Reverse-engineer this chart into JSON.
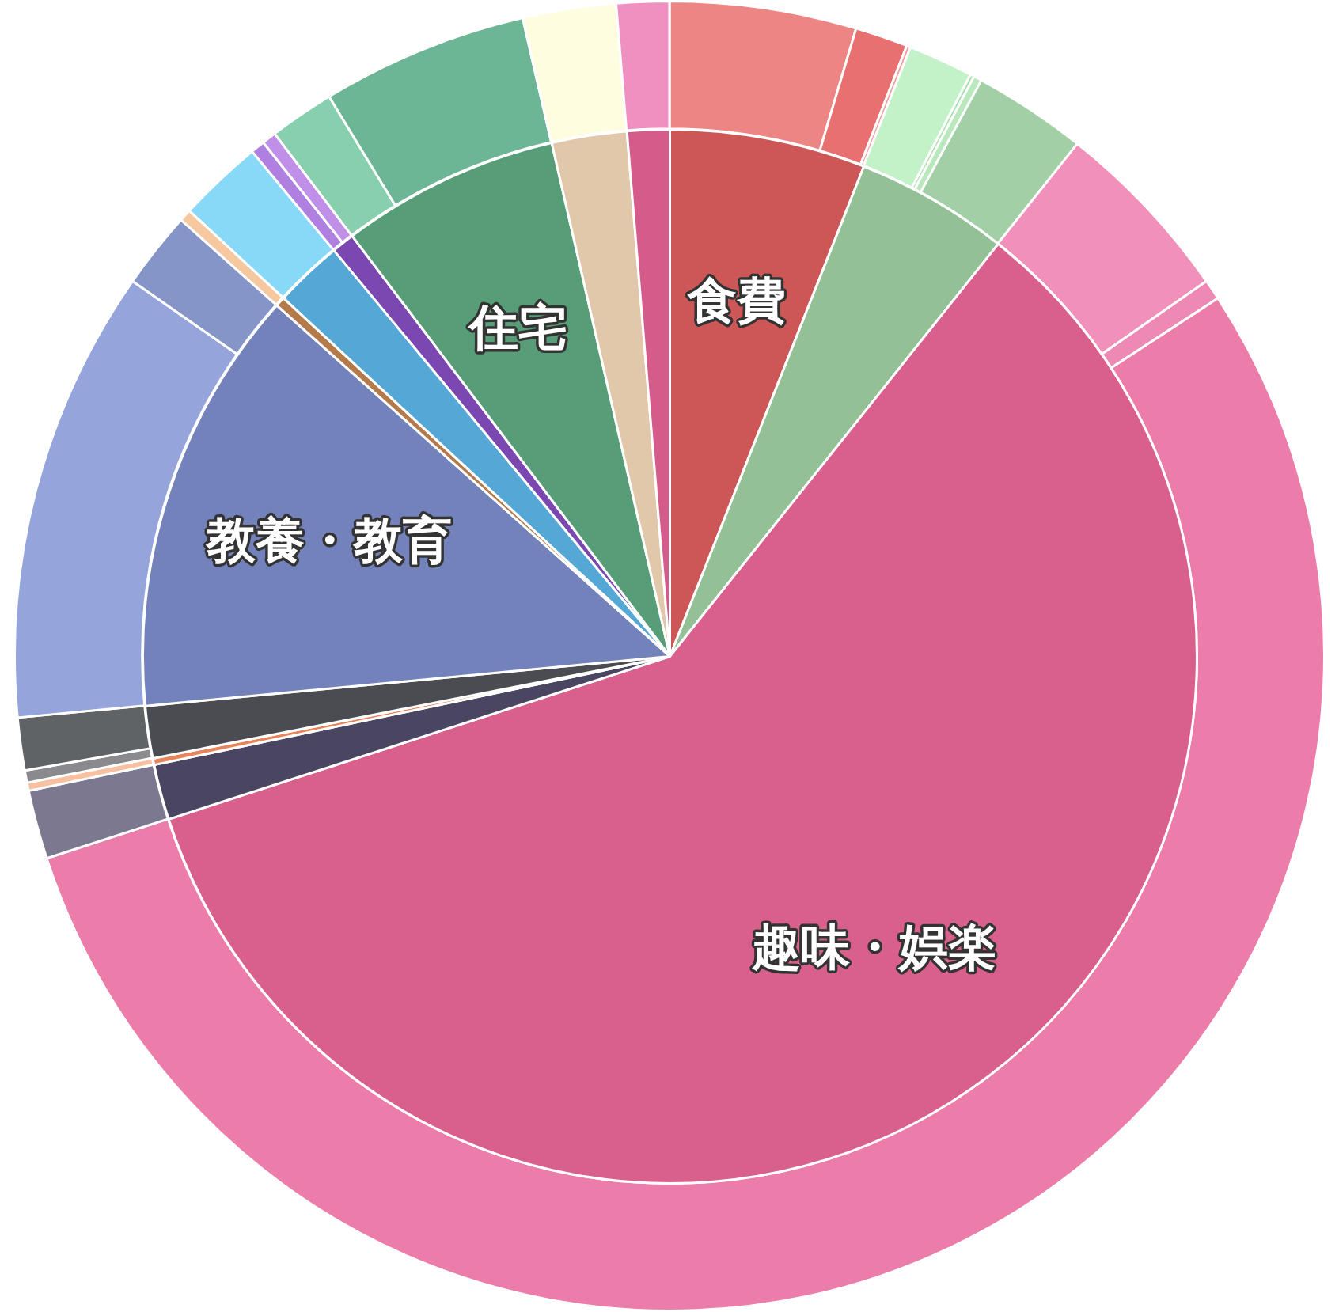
{
  "chart_data": [
    {
      "type": "pie",
      "categories": [
        "食費",
        null,
        "趣味・娯楽",
        null,
        null,
        null,
        "教養・教育",
        null,
        null,
        null,
        "住宅",
        null,
        null
      ],
      "values": [
        6.0,
        4.7,
        59.3,
        1.7,
        0.2,
        1.6,
        13.1,
        0.3,
        2.1,
        0.7,
        6.7,
        2.3,
        1.3
      ],
      "colors": [
        "#cd5656",
        "#94c096",
        "#d9608c",
        "#4a4560",
        "#e8845a",
        "#4a4c52",
        "#7382ba",
        "#b57a4a",
        "#55a8d5",
        "#7a48b0",
        "#579d78",
        "#e2c8aa",
        "#d55c8a"
      ]
    },
    {
      "type": "donut",
      "categories": [
        null,
        null,
        null,
        null,
        null,
        null,
        null,
        null,
        null,
        null,
        null,
        null,
        null,
        null,
        null,
        null,
        null,
        null,
        null,
        null,
        null,
        null,
        null,
        null
      ],
      "values": [
        4.6,
        1.3,
        0.1,
        1.6,
        0.1,
        0.2,
        2.8,
        4.6,
        0.5,
        54.2,
        1.7,
        0.2,
        0.3,
        1.3,
        11.2,
        1.9,
        0.3,
        2.1,
        0.35,
        0.35,
        1.6,
        5.1,
        2.3,
        1.3
      ],
      "colors": [
        "#ee8585",
        "#e87070",
        "#f0a0a0",
        "#c3f2c8",
        "#a8e0ab",
        "#b8e8bb",
        "#a2cfa5",
        "#f090bb",
        "#ee88b5",
        "#ec7caa",
        "#7c7890",
        "#f7c0a0",
        "#8a8a8e",
        "#606366",
        "#95a5dc",
        "#8595c8",
        "#f5c8a0",
        "#88d8f8",
        "#b080e0",
        "#c090e8",
        "#88d0ad",
        "#6cb595",
        "#fffde0",
        "#f090c0"
      ]
    }
  ]
}
